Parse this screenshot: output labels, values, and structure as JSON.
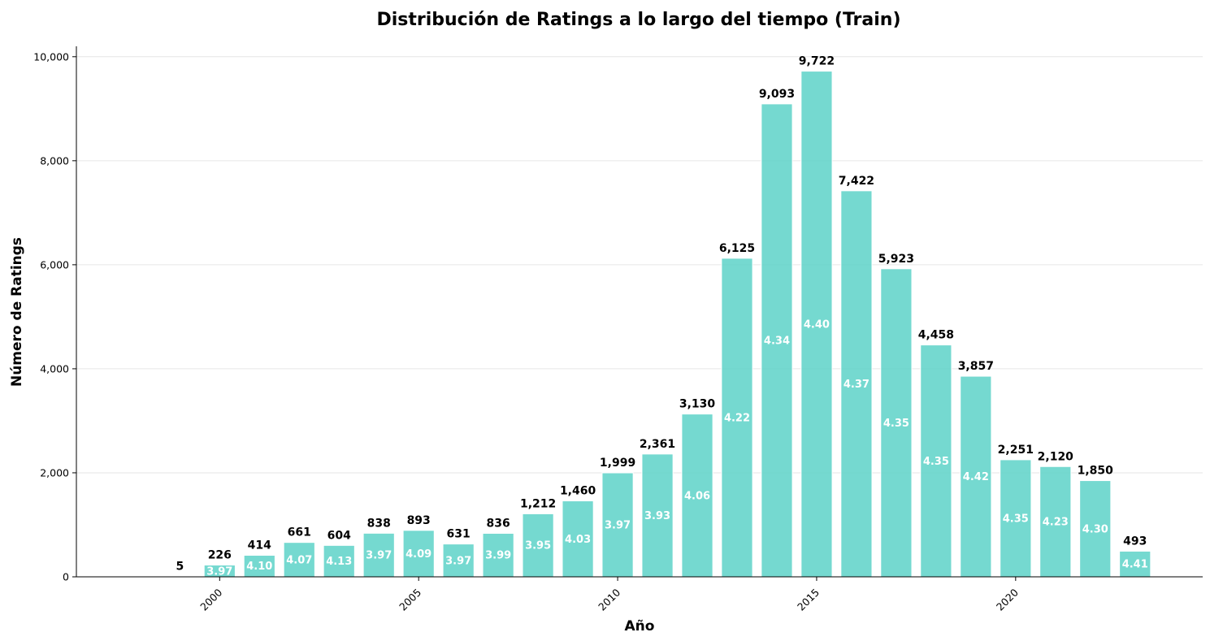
{
  "chart_data": {
    "type": "bar",
    "title": "Distribución de Ratings a lo largo del tiempo (Train)",
    "xlabel": "Año",
    "ylabel": "Número de Ratings",
    "colors": {
      "bar": "#5dd2c8",
      "bar_edge": "#ffffff",
      "grid": "#e6e6e6",
      "avg_text": "#ffffff"
    },
    "grid": "horizontal",
    "xlim": [
      1996.4,
      2024.7
    ],
    "ylim": [
      0,
      10200
    ],
    "x_ticks": [
      {
        "value": 2000,
        "label": "2000"
      },
      {
        "value": 2005,
        "label": "2005"
      },
      {
        "value": 2010,
        "label": "2010"
      },
      {
        "value": 2015,
        "label": "2015"
      },
      {
        "value": 2020,
        "label": "2020"
      }
    ],
    "y_ticks": [
      {
        "value": 0,
        "label": "0"
      },
      {
        "value": 2000,
        "label": "2,000"
      },
      {
        "value": 4000,
        "label": "4,000"
      },
      {
        "value": 6000,
        "label": "6,000"
      },
      {
        "value": 8000,
        "label": "8,000"
      },
      {
        "value": 10000,
        "label": "10,000"
      }
    ],
    "bars": [
      {
        "year": 1999,
        "count": 5,
        "count_label": "5",
        "avg": ""
      },
      {
        "year": 2000,
        "count": 226,
        "count_label": "226",
        "avg": "3.97"
      },
      {
        "year": 2001,
        "count": 414,
        "count_label": "414",
        "avg": "4.10"
      },
      {
        "year": 2002,
        "count": 661,
        "count_label": "661",
        "avg": "4.07"
      },
      {
        "year": 2003,
        "count": 604,
        "count_label": "604",
        "avg": "4.13"
      },
      {
        "year": 2004,
        "count": 838,
        "count_label": "838",
        "avg": "3.97"
      },
      {
        "year": 2005,
        "count": 893,
        "count_label": "893",
        "avg": "4.09"
      },
      {
        "year": 2006,
        "count": 631,
        "count_label": "631",
        "avg": "3.97"
      },
      {
        "year": 2007,
        "count": 836,
        "count_label": "836",
        "avg": "3.99"
      },
      {
        "year": 2008,
        "count": 1212,
        "count_label": "1,212",
        "avg": "3.95"
      },
      {
        "year": 2009,
        "count": 1460,
        "count_label": "1,460",
        "avg": "4.03"
      },
      {
        "year": 2010,
        "count": 1999,
        "count_label": "1,999",
        "avg": "3.97"
      },
      {
        "year": 2011,
        "count": 2361,
        "count_label": "2,361",
        "avg": "3.93"
      },
      {
        "year": 2012,
        "count": 3130,
        "count_label": "3,130",
        "avg": "4.06"
      },
      {
        "year": 2013,
        "count": 6125,
        "count_label": "6,125",
        "avg": "4.22"
      },
      {
        "year": 2014,
        "count": 9093,
        "count_label": "9,093",
        "avg": "4.34"
      },
      {
        "year": 2015,
        "count": 9722,
        "count_label": "9,722",
        "avg": "4.40"
      },
      {
        "year": 2016,
        "count": 7422,
        "count_label": "7,422",
        "avg": "4.37"
      },
      {
        "year": 2017,
        "count": 5923,
        "count_label": "5,923",
        "avg": "4.35"
      },
      {
        "year": 2018,
        "count": 4458,
        "count_label": "4,458",
        "avg": "4.35"
      },
      {
        "year": 2019,
        "count": 3857,
        "count_label": "3,857",
        "avg": "4.42"
      },
      {
        "year": 2020,
        "count": 2251,
        "count_label": "2,251",
        "avg": "4.35"
      },
      {
        "year": 2021,
        "count": 2120,
        "count_label": "2,120",
        "avg": "4.23"
      },
      {
        "year": 2022,
        "count": 1850,
        "count_label": "1,850",
        "avg": "4.30"
      },
      {
        "year": 2023,
        "count": 493,
        "count_label": "493",
        "avg": "4.41"
      }
    ]
  }
}
